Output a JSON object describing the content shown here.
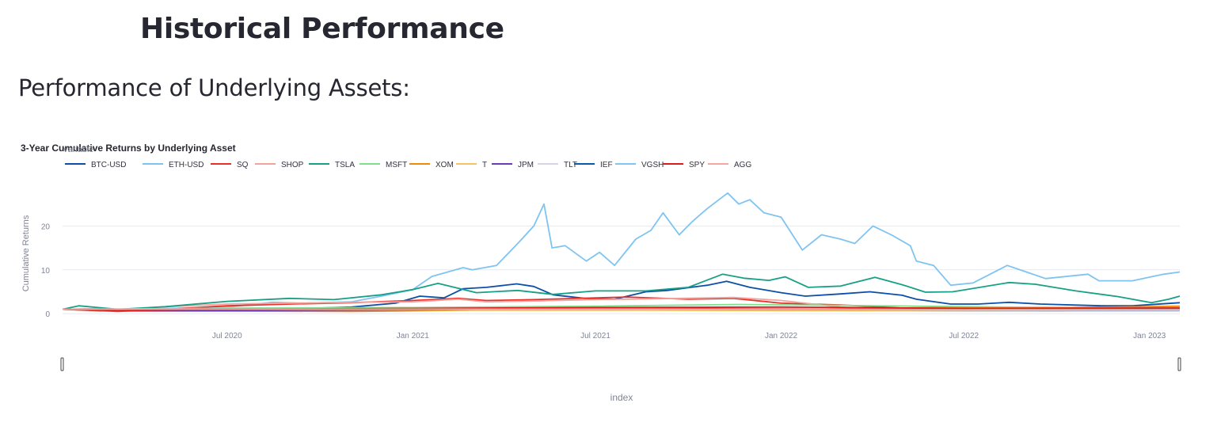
{
  "page": {
    "title": "Historical Performance",
    "subtitle": "Performance of Underlying Assets:"
  },
  "colors": {
    "background": "#ffffff",
    "grid": "#e6e9ef",
    "text": "#31333f"
  },
  "chart_data": {
    "type": "line",
    "title": "3-Year Cumulative Returns by Underlying Asset",
    "legend_title": "variable",
    "xlabel": "index",
    "ylabel": "Cumulative Returns",
    "xlim": [
      "2020-01-20",
      "2023-01-31"
    ],
    "ylim": [
      -2.5,
      30
    ],
    "yticks": [
      0,
      10,
      20
    ],
    "xticks": [
      {
        "date": "2020-07-01",
        "label": "Jul 2020"
      },
      {
        "date": "2021-01-01",
        "label": "Jan 2021"
      },
      {
        "date": "2021-07-01",
        "label": "Jul 2021"
      },
      {
        "date": "2022-01-01",
        "label": "Jan 2022"
      },
      {
        "date": "2022-07-01",
        "label": "Jul 2022"
      },
      {
        "date": "2023-01-01",
        "label": "Jan 2023"
      }
    ],
    "grid": true,
    "legend_position": "top-left, horizontal",
    "series": [
      {
        "name": "BTC-USD",
        "color": "#0b4fa8",
        "points": [
          [
            "2020-01-20",
            1.0
          ],
          [
            "2020-03-01",
            0.9
          ],
          [
            "2020-03-15",
            0.6
          ],
          [
            "2020-05-01",
            0.9
          ],
          [
            "2020-07-01",
            1.0
          ],
          [
            "2020-09-01",
            1.1
          ],
          [
            "2020-11-01",
            1.5
          ],
          [
            "2020-12-15",
            2.4
          ],
          [
            "2021-01-08",
            4.0
          ],
          [
            "2021-02-01",
            3.6
          ],
          [
            "2021-02-20",
            5.7
          ],
          [
            "2021-03-15",
            6.0
          ],
          [
            "2021-04-14",
            6.8
          ],
          [
            "2021-05-01",
            6.2
          ],
          [
            "2021-05-20",
            4.3
          ],
          [
            "2021-06-20",
            3.5
          ],
          [
            "2021-07-20",
            3.3
          ],
          [
            "2021-08-20",
            5.0
          ],
          [
            "2021-09-10",
            5.3
          ],
          [
            "2021-10-20",
            6.5
          ],
          [
            "2021-11-08",
            7.4
          ],
          [
            "2021-12-01",
            6.0
          ],
          [
            "2022-01-01",
            4.8
          ],
          [
            "2022-01-25",
            4.0
          ],
          [
            "2022-03-01",
            4.5
          ],
          [
            "2022-03-30",
            5.0
          ],
          [
            "2022-05-01",
            4.2
          ],
          [
            "2022-05-15",
            3.3
          ],
          [
            "2022-06-18",
            2.2
          ],
          [
            "2022-07-15",
            2.2
          ],
          [
            "2022-08-15",
            2.6
          ],
          [
            "2022-09-15",
            2.2
          ],
          [
            "2022-11-15",
            1.8
          ],
          [
            "2022-12-15",
            1.8
          ],
          [
            "2023-01-31",
            2.5
          ]
        ]
      },
      {
        "name": "ETH-USD",
        "color": "#7fc4f1",
        "points": [
          [
            "2020-01-20",
            1.0
          ],
          [
            "2020-03-01",
            1.2
          ],
          [
            "2020-03-15",
            0.8
          ],
          [
            "2020-05-01",
            1.2
          ],
          [
            "2020-07-01",
            1.5
          ],
          [
            "2020-08-15",
            2.6
          ],
          [
            "2020-09-15",
            2.4
          ],
          [
            "2020-11-01",
            2.7
          ],
          [
            "2020-12-01",
            4.0
          ],
          [
            "2021-01-01",
            5.5
          ],
          [
            "2021-01-20",
            8.5
          ],
          [
            "2021-02-20,",
            10.5
          ],
          [
            "2021-03-01",
            10.0
          ],
          [
            "2021-03-25",
            11.0
          ],
          [
            "2021-04-15",
            16.0
          ],
          [
            "2021-05-01",
            20.0
          ],
          [
            "2021-05-11",
            25.0
          ],
          [
            "2021-05-19",
            15.0
          ],
          [
            "2021-06-01",
            15.5
          ],
          [
            "2021-06-22",
            12.0
          ],
          [
            "2021-07-05",
            14.0
          ],
          [
            "2021-07-20",
            11.0
          ],
          [
            "2021-08-10",
            17.0
          ],
          [
            "2021-08-25",
            19.0
          ],
          [
            "2021-09-06",
            23.0
          ],
          [
            "2021-09-22",
            18.0
          ],
          [
            "2021-10-05",
            21.0
          ],
          [
            "2021-10-20",
            24.0
          ],
          [
            "2021-11-09",
            27.5
          ],
          [
            "2021-11-20",
            25.0
          ],
          [
            "2021-12-01",
            26.0
          ],
          [
            "2021-12-15",
            23.0
          ],
          [
            "2022-01-01",
            22.0
          ],
          [
            "2022-01-22",
            14.5
          ],
          [
            "2022-02-10",
            18.0
          ],
          [
            "2022-03-01",
            17.0
          ],
          [
            "2022-03-15",
            16.0
          ],
          [
            "2022-04-02",
            20.0
          ],
          [
            "2022-04-20",
            18.0
          ],
          [
            "2022-05-09",
            15.5
          ],
          [
            "2022-05-15",
            12.0
          ],
          [
            "2022-06-01",
            11.0
          ],
          [
            "2022-06-18",
            6.5
          ],
          [
            "2022-07-10",
            7.0
          ],
          [
            "2022-08-13",
            11.0
          ],
          [
            "2022-09-01",
            9.5
          ],
          [
            "2022-09-20",
            8.0
          ],
          [
            "2022-11-01",
            9.0
          ],
          [
            "2022-11-12",
            7.5
          ],
          [
            "2022-12-15",
            7.5
          ],
          [
            "2023-01-15",
            9.0
          ],
          [
            "2023-01-31",
            9.5
          ]
        ]
      },
      {
        "name": "SQ",
        "color": "#e8302a",
        "points": [
          [
            "2020-01-20",
            1.0
          ],
          [
            "2020-03-15",
            0.5
          ],
          [
            "2020-05-01",
            1.0
          ],
          [
            "2020-07-01",
            1.8
          ],
          [
            "2020-09-01",
            2.2
          ],
          [
            "2020-11-01",
            2.5
          ],
          [
            "2021-01-01",
            3.0
          ],
          [
            "2021-02-15",
            3.5
          ],
          [
            "2021-03-15",
            3.0
          ],
          [
            "2021-05-01",
            3.2
          ],
          [
            "2021-08-01",
            3.8
          ],
          [
            "2021-10-01",
            3.3
          ],
          [
            "2021-11-15",
            3.5
          ],
          [
            "2022-01-01",
            2.4
          ],
          [
            "2022-03-01",
            2.0
          ],
          [
            "2022-05-01",
            1.3
          ],
          [
            "2022-07-01",
            1.1
          ],
          [
            "2022-10-01",
            0.9
          ],
          [
            "2023-01-31",
            1.0
          ]
        ]
      },
      {
        "name": "SHOP",
        "color": "#f2a39c",
        "points": [
          [
            "2020-01-20",
            1.0
          ],
          [
            "2020-03-15",
            0.8
          ],
          [
            "2020-05-01",
            1.6
          ],
          [
            "2020-07-01",
            2.2
          ],
          [
            "2020-09-01",
            2.4
          ],
          [
            "2020-11-01",
            2.6
          ],
          [
            "2021-01-01",
            2.7
          ],
          [
            "2021-02-15",
            3.3
          ],
          [
            "2021-03-15",
            2.7
          ],
          [
            "2021-05-01",
            2.9
          ],
          [
            "2021-07-01",
            3.2
          ],
          [
            "2021-09-01",
            3.4
          ],
          [
            "2021-11-15",
            3.7
          ],
          [
            "2022-01-01",
            3.0
          ],
          [
            "2022-03-01",
            1.5
          ],
          [
            "2022-05-01",
            0.9
          ],
          [
            "2022-07-01",
            0.7
          ],
          [
            "2022-10-01",
            0.6
          ],
          [
            "2023-01-31",
            0.9
          ]
        ]
      },
      {
        "name": "TSLA",
        "color": "#17a085",
        "points": [
          [
            "2020-01-20",
            1.0
          ],
          [
            "2020-02-05",
            1.8
          ],
          [
            "2020-03-15",
            1.0
          ],
          [
            "2020-05-01",
            1.6
          ],
          [
            "2020-07-01",
            2.8
          ],
          [
            "2020-09-01",
            3.5
          ],
          [
            "2020-10-15",
            3.2
          ],
          [
            "2020-12-01",
            4.3
          ],
          [
            "2021-01-01",
            5.5
          ],
          [
            "2021-01-26",
            6.9
          ],
          [
            "2021-03-05",
            4.8
          ],
          [
            "2021-04-15",
            5.3
          ],
          [
            "2021-05-20",
            4.4
          ],
          [
            "2021-07-01",
            5.2
          ],
          [
            "2021-08-20",
            5.2
          ],
          [
            "2021-10-01",
            6.0
          ],
          [
            "2021-11-04",
            9.0
          ],
          [
            "2021-11-25",
            8.1
          ],
          [
            "2021-12-20",
            7.6
          ],
          [
            "2022-01-05",
            8.4
          ],
          [
            "2022-01-28",
            6.0
          ],
          [
            "2022-03-01",
            6.3
          ],
          [
            "2022-04-04",
            8.3
          ],
          [
            "2022-05-01",
            6.6
          ],
          [
            "2022-05-24",
            4.9
          ],
          [
            "2022-06-20",
            5.0
          ],
          [
            "2022-08-15",
            7.1
          ],
          [
            "2022-09-10",
            6.7
          ],
          [
            "2022-10-20",
            5.2
          ],
          [
            "2022-12-01",
            3.9
          ],
          [
            "2023-01-03",
            2.5
          ],
          [
            "2023-01-20",
            3.3
          ],
          [
            "2023-01-31",
            4.0
          ]
        ]
      },
      {
        "name": "MSFT",
        "color": "#7fe08a",
        "points": [
          [
            "2020-01-20",
            1.0
          ],
          [
            "2020-03-15",
            0.9
          ],
          [
            "2020-07-01",
            1.3
          ],
          [
            "2021-01-01",
            1.4
          ],
          [
            "2021-07-01",
            1.7
          ],
          [
            "2021-11-20",
            2.1
          ],
          [
            "2022-03-01",
            1.9
          ],
          [
            "2022-07-01",
            1.6
          ],
          [
            "2022-10-15",
            1.4
          ],
          [
            "2023-01-31",
            1.5
          ]
        ]
      },
      {
        "name": "XOM",
        "color": "#f08a0a",
        "points": [
          [
            "2020-01-20",
            1.0
          ],
          [
            "2020-03-15",
            0.6
          ],
          [
            "2020-07-01",
            0.6
          ],
          [
            "2020-11-01",
            0.5
          ],
          [
            "2021-03-01",
            0.8
          ],
          [
            "2021-07-01",
            0.8
          ],
          [
            "2022-01-01",
            0.9
          ],
          [
            "2022-06-01",
            1.4
          ],
          [
            "2022-09-01",
            1.3
          ],
          [
            "2023-01-31",
            1.7
          ]
        ]
      },
      {
        "name": "T",
        "color": "#f5c462",
        "points": [
          [
            "2020-01-20",
            1.0
          ],
          [
            "2020-03-15",
            0.8
          ],
          [
            "2020-07-01",
            0.8
          ],
          [
            "2021-01-01",
            0.8
          ],
          [
            "2021-07-01",
            0.8
          ],
          [
            "2022-01-01",
            0.7
          ],
          [
            "2022-07-01",
            0.6
          ],
          [
            "2023-01-31",
            0.6
          ]
        ]
      },
      {
        "name": "JPM",
        "color": "#6a3db5",
        "points": [
          [
            "2020-01-20",
            1.0
          ],
          [
            "2020-03-15",
            0.7
          ],
          [
            "2020-07-01",
            0.7
          ],
          [
            "2021-01-01",
            0.9
          ],
          [
            "2021-07-01",
            1.2
          ],
          [
            "2022-01-01",
            1.1
          ],
          [
            "2022-07-01",
            0.9
          ],
          [
            "2023-01-31",
            1.0
          ]
        ]
      },
      {
        "name": "TLT",
        "color": "#d5d5e8",
        "points": [
          [
            "2020-01-20",
            1.0
          ],
          [
            "2020-03-15",
            1.1
          ],
          [
            "2020-07-01",
            1.2
          ],
          [
            "2021-01-01",
            1.1
          ],
          [
            "2021-07-01",
            1.1
          ],
          [
            "2022-01-01",
            1.0
          ],
          [
            "2022-07-01",
            0.8
          ],
          [
            "2023-01-31",
            0.7
          ]
        ]
      },
      {
        "name": "IEF",
        "color": "#0a5aa8",
        "points": [
          [
            "2020-01-20",
            1.0
          ],
          [
            "2020-07-01",
            1.1
          ],
          [
            "2021-07-01",
            1.05
          ],
          [
            "2022-07-01",
            0.9
          ],
          [
            "2023-01-31",
            0.9
          ]
        ]
      },
      {
        "name": "VGSH",
        "color": "#80c6f2",
        "points": [
          [
            "2020-01-20",
            1.0
          ],
          [
            "2021-01-01",
            1.02
          ],
          [
            "2022-01-01",
            1.0
          ],
          [
            "2023-01-31",
            0.97
          ]
        ]
      },
      {
        "name": "SPY",
        "color": "#d91c1c",
        "points": [
          [
            "2020-01-20",
            1.0
          ],
          [
            "2020-03-15",
            0.7
          ],
          [
            "2020-07-01",
            1.0
          ],
          [
            "2021-01-01",
            1.2
          ],
          [
            "2021-07-01",
            1.4
          ],
          [
            "2022-01-01",
            1.5
          ],
          [
            "2022-07-01",
            1.2
          ],
          [
            "2023-01-31",
            1.3
          ]
        ]
      },
      {
        "name": "AGG",
        "color": "#f4a7a1",
        "points": [
          [
            "2020-01-20",
            1.0
          ],
          [
            "2020-07-01",
            1.05
          ],
          [
            "2021-07-01",
            1.04
          ],
          [
            "2022-07-01",
            0.92
          ],
          [
            "2023-01-31",
            0.93
          ]
        ]
      }
    ]
  }
}
